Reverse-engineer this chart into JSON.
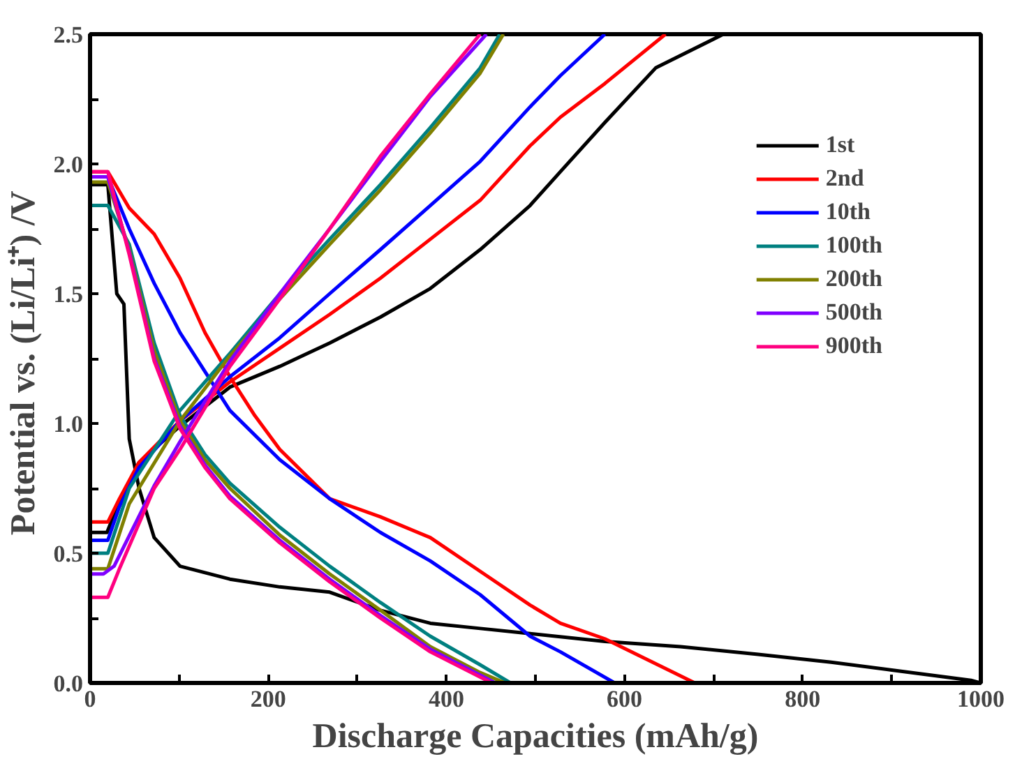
{
  "chart_data": {
    "type": "line",
    "xlabel": "Discharge Capacities (mAh/g)",
    "ylabel": "Potential vs.  (Li/Li⁺) /V",
    "xlim": [
      0,
      1000
    ],
    "ylim": [
      0,
      2.5
    ],
    "xticks": [
      0,
      {
        "value": 100,
        "label": null
      },
      200,
      {
        "value": 300,
        "label": null
      },
      400,
      {
        "value": 500,
        "label": null
      },
      600,
      {
        "value": 700,
        "label": null
      },
      800,
      {
        "value": 900,
        "label": null
      },
      1000
    ],
    "yticks": [
      {
        "value": 0,
        "label": "0.0"
      },
      {
        "value": 0.25,
        "label": null
      },
      0.5,
      {
        "value": 0.75,
        "label": null
      },
      {
        "value": 1,
        "label": "1.0"
      },
      {
        "value": 1.25,
        "label": null
      },
      1.5,
      {
        "value": 1.75,
        "label": null
      },
      {
        "value": 2,
        "label": "2.0"
      },
      {
        "value": 2.25,
        "label": null
      },
      2.5
    ],
    "legend": "top right",
    "grid": false,
    "line_style": "solid",
    "marker": "none",
    "series": [
      {
        "name": "1st",
        "color": "#000000",
        "x": [
          0,
          20,
          30,
          38,
          44,
          55,
          72,
          101,
          157,
          213,
          269,
          326,
          382,
          438,
          494,
          578,
          663,
          750,
          832,
          900,
          989,
          1000,
          null,
          0,
          19,
          33,
          55,
          101,
          157,
          213,
          269,
          326,
          382,
          438,
          494,
          528,
          578,
          635,
          711
        ],
        "values": [
          1.92,
          1.92,
          1.5,
          1.46,
          0.94,
          0.75,
          0.56,
          0.45,
          0.4,
          0.37,
          0.35,
          0.28,
          0.23,
          0.21,
          0.19,
          0.16,
          0.14,
          0.11,
          0.08,
          0.05,
          0.01,
          0.0,
          null,
          0.58,
          0.58,
          0.7,
          0.85,
          0.99,
          1.14,
          1.22,
          1.31,
          1.41,
          1.52,
          1.67,
          1.84,
          1.97,
          2.16,
          2.37,
          2.5
        ]
      },
      {
        "name": "2nd",
        "color": "#ff0000",
        "x": [
          0,
          20,
          44,
          72,
          101,
          129,
          157,
          185,
          213,
          269,
          326,
          382,
          438,
          494,
          528,
          578,
          679,
          null,
          0,
          20,
          33,
          55,
          101,
          157,
          213,
          269,
          326,
          382,
          438,
          494,
          528,
          578,
          646
        ],
        "values": [
          1.97,
          1.97,
          1.83,
          1.73,
          1.56,
          1.35,
          1.18,
          1.03,
          0.9,
          0.71,
          0.64,
          0.56,
          0.43,
          0.3,
          0.23,
          0.17,
          0.0,
          null,
          0.62,
          0.62,
          0.71,
          0.85,
          1.01,
          1.16,
          1.29,
          1.42,
          1.56,
          1.71,
          1.86,
          2.07,
          2.18,
          2.31,
          2.5
        ]
      },
      {
        "name": "10th",
        "color": "#0000ff",
        "x": [
          20,
          44,
          72,
          101,
          129,
          157,
          213,
          269,
          326,
          382,
          438,
          494,
          528,
          589,
          null,
          0,
          20,
          33,
          55,
          101,
          157,
          213,
          269,
          326,
          382,
          438,
          494,
          528,
          578
        ],
        "values": [
          1.95,
          1.75,
          1.54,
          1.35,
          1.2,
          1.05,
          0.86,
          0.71,
          0.58,
          0.47,
          0.34,
          0.18,
          0.12,
          0.0,
          null,
          0.55,
          0.55,
          0.68,
          0.83,
          1.01,
          1.18,
          1.33,
          1.5,
          1.67,
          1.84,
          2.01,
          2.22,
          2.34,
          2.5
        ]
      },
      {
        "name": "100th",
        "color": "#008080",
        "x": [
          0,
          20,
          44,
          72,
          101,
          129,
          157,
          213,
          269,
          326,
          382,
          438,
          472,
          null,
          0,
          20,
          44,
          101,
          157,
          213,
          269,
          326,
          382,
          438,
          460
        ],
        "values": [
          1.84,
          1.84,
          1.69,
          1.31,
          1.03,
          0.88,
          0.77,
          0.6,
          0.45,
          0.31,
          0.18,
          0.07,
          0.0,
          null,
          0.5,
          0.5,
          0.75,
          1.05,
          1.27,
          1.5,
          1.71,
          1.92,
          2.14,
          2.37,
          2.5
        ]
      },
      {
        "name": "200th",
        "color": "#808000",
        "x": [
          0,
          20,
          44,
          72,
          101,
          129,
          157,
          213,
          269,
          326,
          382,
          438,
          466,
          null,
          0,
          20,
          44,
          101,
          157,
          213,
          269,
          326,
          382,
          438,
          464
        ],
        "values": [
          1.93,
          1.93,
          1.67,
          1.28,
          1.01,
          0.86,
          0.75,
          0.57,
          0.42,
          0.28,
          0.14,
          0.04,
          0.0,
          null,
          0.44,
          0.44,
          0.69,
          1.01,
          1.26,
          1.48,
          1.69,
          1.9,
          2.12,
          2.35,
          2.5
        ]
      },
      {
        "name": "500th",
        "color": "#8000ff",
        "x": [
          0,
          20,
          44,
          72,
          101,
          129,
          157,
          213,
          269,
          326,
          382,
          455,
          null,
          0,
          15,
          27,
          72,
          101,
          157,
          213,
          269,
          326,
          382,
          445
        ],
        "values": [
          1.95,
          1.95,
          1.66,
          1.25,
          0.99,
          0.84,
          0.72,
          0.55,
          0.4,
          0.26,
          0.13,
          0.0,
          null,
          0.42,
          0.42,
          0.45,
          0.76,
          0.93,
          1.24,
          1.5,
          1.75,
          2.01,
          2.26,
          2.5
        ]
      },
      {
        "name": "900th",
        "color": "#ff0080",
        "x": [
          0,
          20,
          44,
          72,
          101,
          129,
          157,
          213,
          269,
          326,
          382,
          451,
          null,
          0,
          20,
          33,
          72,
          101,
          157,
          213,
          269,
          326,
          382,
          438
        ],
        "values": [
          1.97,
          1.97,
          1.65,
          1.24,
          0.98,
          0.83,
          0.71,
          0.54,
          0.39,
          0.25,
          0.12,
          0.0,
          null,
          0.33,
          0.33,
          0.44,
          0.75,
          0.9,
          1.22,
          1.48,
          1.75,
          2.03,
          2.27,
          2.5
        ]
      }
    ]
  }
}
